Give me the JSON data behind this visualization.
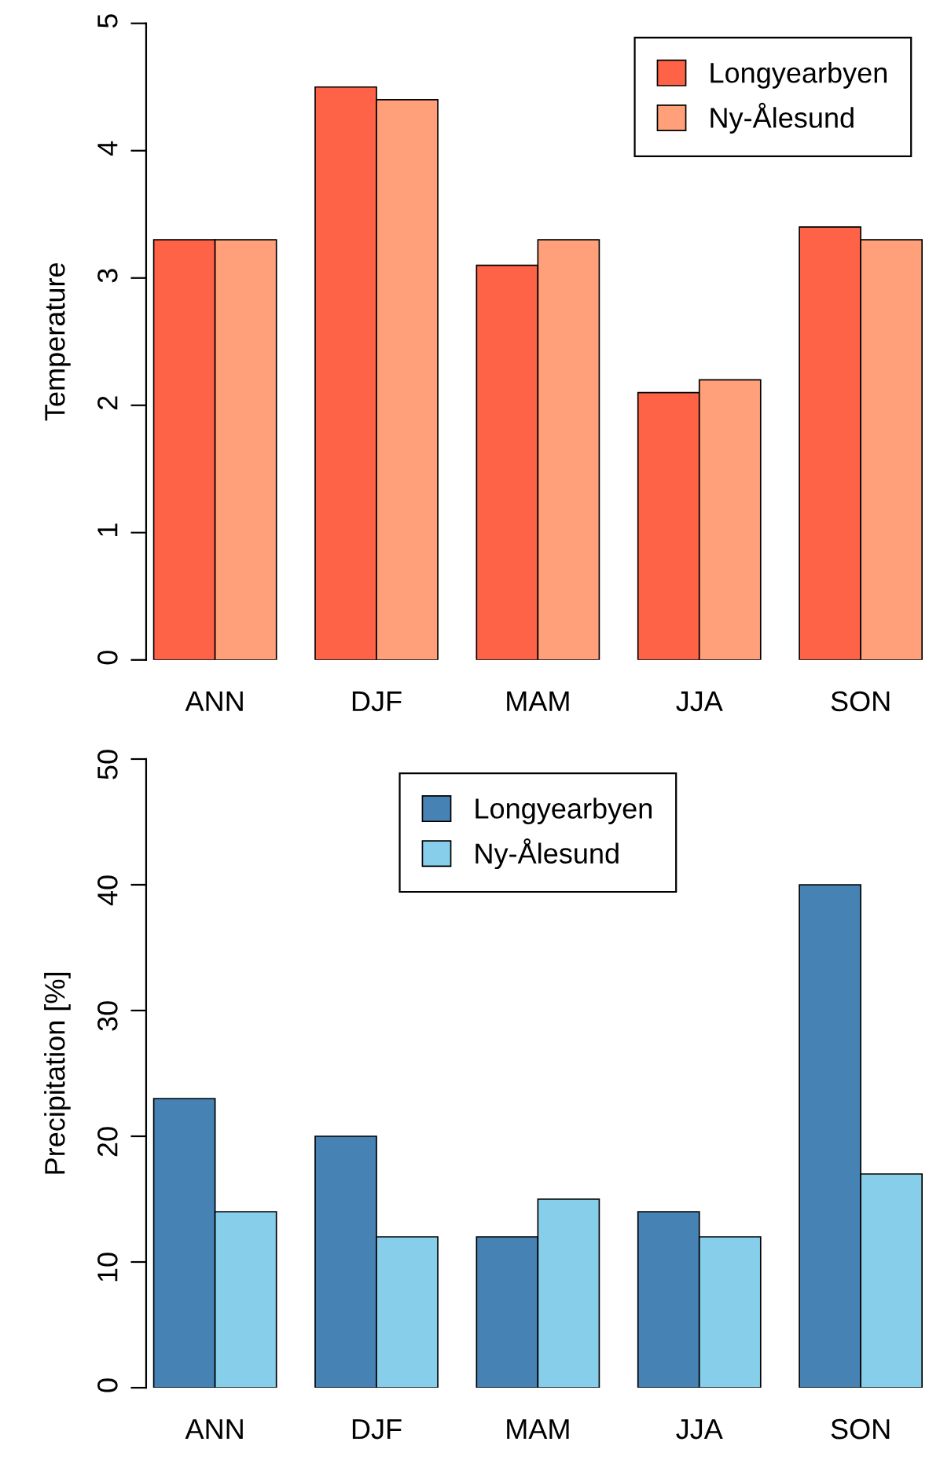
{
  "chart_data": [
    {
      "type": "bar",
      "ylabel": "Temperature",
      "categories": [
        "ANN",
        "DJF",
        "MAM",
        "JJA",
        "SON"
      ],
      "ylim": [
        0,
        5
      ],
      "yticks": [
        0,
        1,
        2,
        3,
        4,
        5
      ],
      "legend": "top right",
      "series": [
        {
          "name": "Longyearbyen",
          "color": "#ff6347",
          "values": [
            3.3,
            4.5,
            3.1,
            2.1,
            3.4
          ]
        },
        {
          "name": "Ny-Ålesund",
          "color": "#ffa07a",
          "values": [
            3.3,
            4.4,
            3.3,
            2.2,
            3.3
          ]
        }
      ]
    },
    {
      "type": "bar",
      "ylabel": "Precipitation [%]",
      "categories": [
        "ANN",
        "DJF",
        "MAM",
        "JJA",
        "SON"
      ],
      "ylim": [
        0,
        50
      ],
      "yticks": [
        0,
        10,
        20,
        30,
        40,
        50
      ],
      "legend": "top",
      "series": [
        {
          "name": "Longyearbyen",
          "color": "#4682b4",
          "values": [
            23,
            20,
            12,
            14,
            40
          ]
        },
        {
          "name": "Ny-Ålesund",
          "color": "#87ceeb",
          "values": [
            14,
            12,
            15,
            12,
            17
          ]
        }
      ]
    }
  ]
}
